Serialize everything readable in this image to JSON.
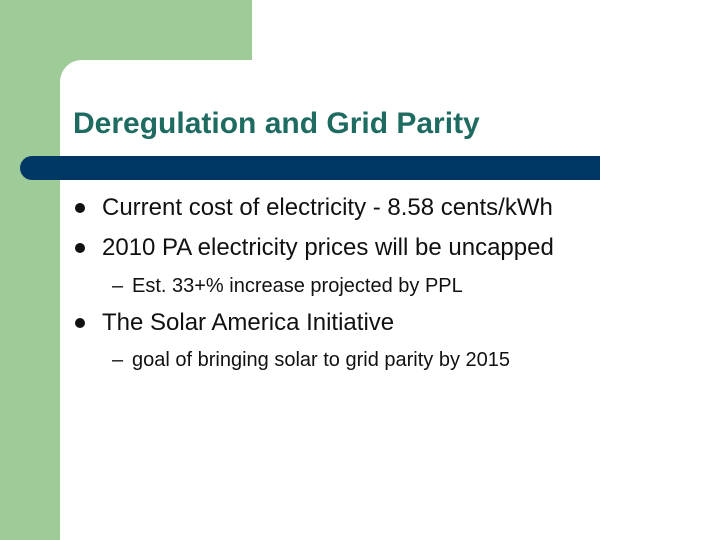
{
  "slide": {
    "title": "Deregulation and Grid Parity",
    "bullets": [
      {
        "text": "Current  cost of electricity - 8.58 cents/kWh",
        "subs": []
      },
      {
        "text": "2010 PA electricity prices will be uncapped",
        "subs": [
          "Est. 33+% increase projected by PPL"
        ]
      },
      {
        "text": "The Solar America Initiative",
        "subs": [
          "goal of bringing solar to grid parity by 2015"
        ]
      }
    ],
    "dash_glyph": "–",
    "colors": {
      "accent_green": "#9ecb98",
      "title_teal": "#1e6b61",
      "bar_navy": "#003764"
    }
  }
}
